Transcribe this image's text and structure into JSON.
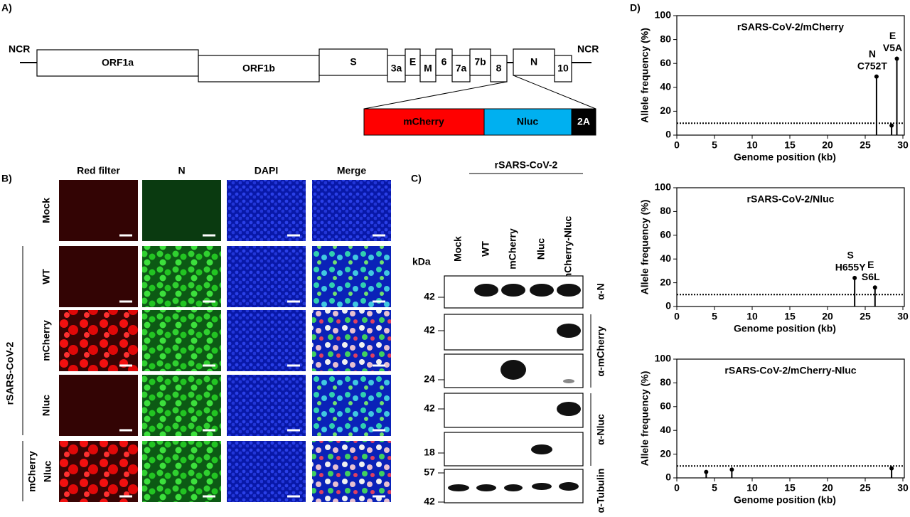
{
  "panel_labels": [
    "A)",
    "B)",
    "C)",
    "D)"
  ],
  "genome": {
    "ncr_left": "NCR",
    "ncr_right": "NCR",
    "genes": [
      "ORF1a",
      "ORF1b",
      "S",
      "3a",
      "E",
      "M",
      "6",
      "7a",
      "7b",
      "8",
      "N",
      "10"
    ],
    "insert": [
      "mCherry",
      "Nluc",
      "2A"
    ]
  },
  "microscopy": {
    "columns": [
      "Red filter",
      "N",
      "DAPI",
      "Merge"
    ],
    "rows": [
      "Mock",
      "WT",
      "mCherry",
      "Nluc",
      [
        "mCherry",
        "Nluc"
      ]
    ],
    "group": "rSARS-CoV-2"
  },
  "western": {
    "group": "rSARS-CoV-2",
    "unit": "kDa",
    "lanes": [
      "Mock",
      "WT",
      "mCherry",
      "Nluc",
      "mCherry-Nluc"
    ],
    "markers": [
      42,
      42,
      24,
      42,
      18,
      57,
      42
    ],
    "antibodies": [
      "α-N",
      "α-mCherry",
      "α-Nluc",
      "α-Tubulin"
    ]
  },
  "chart_data": [
    {
      "type": "lollipop",
      "title": "rSARS-CoV-2/mCherry",
      "x_label": "Genome position (kb)",
      "y_label": "Allele frequency (%)",
      "x": [
        26.5,
        28.5,
        29.2
      ],
      "values": [
        49,
        8,
        64
      ],
      "point_labels": [
        [
          "N",
          "C752T"
        ],
        null,
        [
          "E",
          "V5A"
        ]
      ],
      "color": "#000000",
      "threshold": 10,
      "xlim": [
        0,
        30
      ],
      "xticks": [
        0,
        5,
        10,
        15,
        20,
        25,
        30
      ],
      "ylim": [
        0,
        100
      ],
      "yticks": [
        0,
        20,
        40,
        60,
        80,
        100
      ]
    },
    {
      "type": "lollipop",
      "title": "rSARS-CoV-2/Nluc",
      "x_label": "Genome position (kb)",
      "y_label": "Allele frequency (%)",
      "x": [
        23.6,
        26.3
      ],
      "values": [
        24,
        16
      ],
      "point_labels": [
        [
          "S",
          "H655Y"
        ],
        [
          "E",
          "S6L"
        ]
      ],
      "color": "#000000",
      "threshold": 10,
      "xlim": [
        0,
        30
      ],
      "xticks": [
        0,
        5,
        10,
        15,
        20,
        25,
        30
      ],
      "ylim": [
        0,
        100
      ],
      "yticks": [
        0,
        20,
        40,
        60,
        80,
        100
      ]
    },
    {
      "type": "lollipop",
      "title": "rSARS-CoV-2/mCherry-Nluc",
      "x_label": "Genome position (kb)",
      "y_label": "Allele frequency (%)",
      "x": [
        3.9,
        7.3,
        28.5
      ],
      "values": [
        5,
        7,
        8
      ],
      "color": "#000000",
      "threshold": 10,
      "xlim": [
        0,
        30
      ],
      "xticks": [
        0,
        5,
        10,
        15,
        20,
        25,
        30
      ],
      "ylim": [
        0,
        100
      ],
      "yticks": [
        0,
        20,
        40,
        60,
        80,
        100
      ]
    }
  ]
}
